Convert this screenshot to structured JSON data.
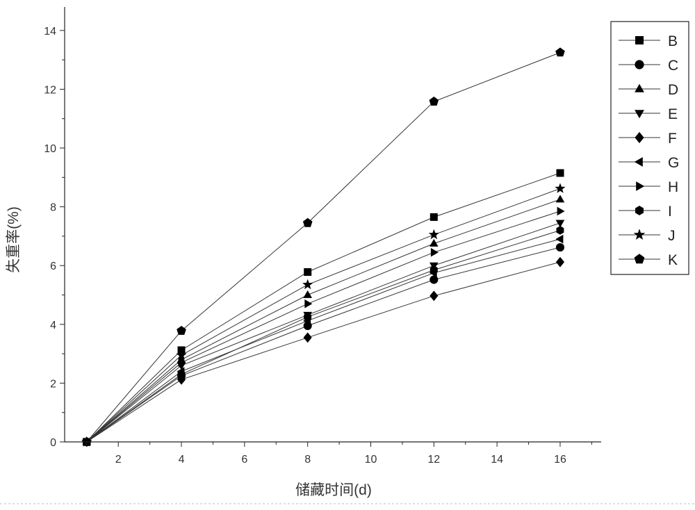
{
  "chart_data": {
    "type": "line",
    "title": "",
    "xlabel": "储藏时间(d)",
    "ylabel": "失重率(%)",
    "xlim": [
      0.3,
      17.3
    ],
    "ylim": [
      0,
      14.8
    ],
    "xticks": [
      2,
      4,
      6,
      8,
      10,
      12,
      14,
      16
    ],
    "yticks": [
      0,
      2,
      4,
      6,
      8,
      10,
      12,
      14
    ],
    "grid": false,
    "legend_position": "right",
    "x": [
      1,
      4,
      8,
      12,
      16
    ],
    "series": [
      {
        "name": "B",
        "marker": "square",
        "values": [
          0,
          3.12,
          5.78,
          7.65,
          9.15
        ]
      },
      {
        "name": "C",
        "marker": "circle",
        "values": [
          0,
          2.25,
          3.95,
          5.52,
          6.62
        ]
      },
      {
        "name": "D",
        "marker": "triangle-up",
        "values": [
          0,
          2.8,
          5.0,
          6.75,
          8.25
        ]
      },
      {
        "name": "E",
        "marker": "triangle-down",
        "values": [
          0,
          2.6,
          4.32,
          6.0,
          7.45
        ]
      },
      {
        "name": "F",
        "marker": "diamond",
        "values": [
          0,
          2.12,
          3.55,
          4.97,
          6.12
        ]
      },
      {
        "name": "G",
        "marker": "triangle-left",
        "values": [
          0,
          2.4,
          4.12,
          5.75,
          6.9
        ]
      },
      {
        "name": "H",
        "marker": "triangle-right",
        "values": [
          0,
          2.7,
          4.7,
          6.45,
          7.85
        ]
      },
      {
        "name": "I",
        "marker": "hexagon",
        "values": [
          0,
          2.3,
          4.25,
          5.85,
          7.2
        ]
      },
      {
        "name": "J",
        "marker": "star",
        "values": [
          0,
          2.95,
          5.35,
          7.05,
          8.62
        ]
      },
      {
        "name": "K",
        "marker": "pentagon",
        "values": [
          0,
          3.78,
          7.45,
          11.58,
          13.25
        ]
      }
    ]
  }
}
